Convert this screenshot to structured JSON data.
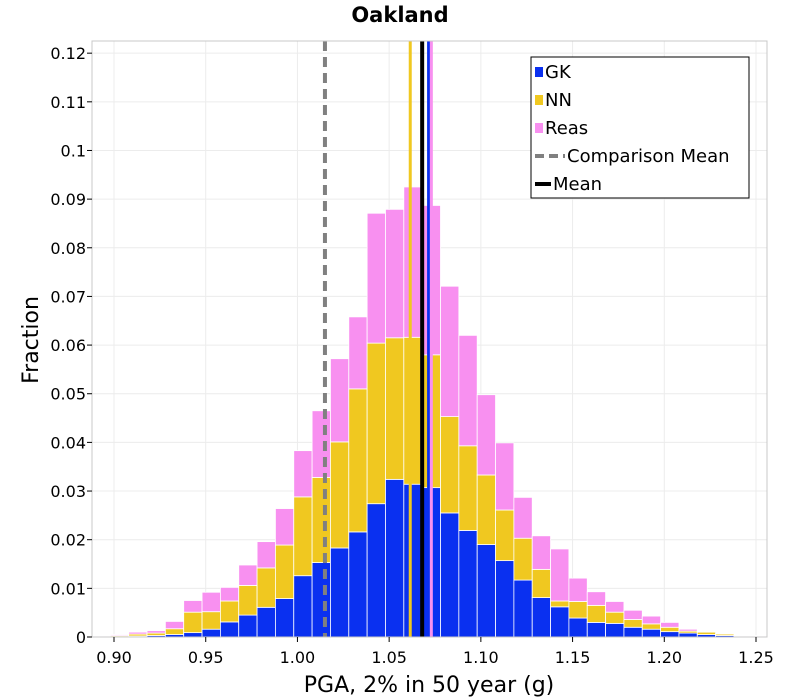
{
  "chart_data": {
    "type": "bar",
    "title": "Oakland",
    "xlabel": "PGA, 2% in 50 year (g)",
    "ylabel": "Fraction",
    "xlim": [
      0.888,
      1.256
    ],
    "ylim": [
      0,
      0.1225
    ],
    "x_ticks": [
      0.9,
      0.95,
      1.0,
      1.05,
      1.1,
      1.15,
      1.2,
      1.25
    ],
    "x_tick_labels": [
      "0.90",
      "0.95",
      "1.00",
      "1.05",
      "1.10",
      "1.15",
      "1.20",
      "1.25"
    ],
    "y_ticks": [
      0,
      0.01,
      0.02,
      0.03,
      0.04,
      0.05,
      0.06,
      0.07,
      0.08,
      0.09,
      0.1,
      0.11,
      0.12
    ],
    "y_tick_labels": [
      "0",
      "0.01",
      "0.02",
      "0.03",
      "0.04",
      "0.05",
      "0.06",
      "0.07",
      "0.08",
      "0.09",
      "0.1",
      "0.11",
      "0.12"
    ],
    "grid": true,
    "stacked": true,
    "bin_width": 0.01,
    "bin_centers": [
      0.893,
      0.903,
      0.913,
      0.923,
      0.933,
      0.943,
      0.953,
      0.963,
      0.973,
      0.983,
      0.993,
      1.003,
      1.013,
      1.023,
      1.033,
      1.043,
      1.053,
      1.063,
      1.073,
      1.083,
      1.093,
      1.103,
      1.113,
      1.123,
      1.133,
      1.143,
      1.153,
      1.163,
      1.173,
      1.183,
      1.193,
      1.203,
      1.213,
      1.223,
      1.233,
      1.243,
      1.253
    ],
    "series": [
      {
        "name": "GK",
        "color": "#0a30f0",
        "values": [
          0.0001,
          0.0001,
          0.0002,
          0.0003,
          0.0005,
          0.0009,
          0.0016,
          0.0031,
          0.0045,
          0.0061,
          0.0079,
          0.0126,
          0.0153,
          0.0183,
          0.0216,
          0.0274,
          0.0324,
          0.0314,
          0.0307,
          0.0255,
          0.0219,
          0.019,
          0.0157,
          0.0117,
          0.0081,
          0.0062,
          0.0039,
          0.003,
          0.0028,
          0.002,
          0.0016,
          0.0011,
          0.0008,
          0.0005,
          0.0003,
          0.0001,
          0.0001
        ]
      },
      {
        "name": "NN",
        "color": "#f0c820",
        "values": [
          0.0001,
          0.0002,
          0.0004,
          0.0005,
          0.0012,
          0.0042,
          0.0036,
          0.0043,
          0.0061,
          0.0081,
          0.011,
          0.0162,
          0.0175,
          0.0218,
          0.0294,
          0.033,
          0.0291,
          0.0302,
          0.0273,
          0.0198,
          0.0174,
          0.0143,
          0.0104,
          0.0086,
          0.0058,
          0.0012,
          0.0034,
          0.0035,
          0.0023,
          0.0016,
          0.0011,
          0.0009,
          0.0004,
          0.0005,
          0.0003,
          0.0001,
          0.0001
        ]
      },
      {
        "name": "Reas",
        "color": "#f890f0",
        "values": [
          0.0001,
          0.0002,
          0.0004,
          0.0005,
          0.0015,
          0.0024,
          0.004,
          0.0028,
          0.0042,
          0.0054,
          0.0075,
          0.0095,
          0.0137,
          0.0171,
          0.0148,
          0.0267,
          0.0264,
          0.0309,
          0.0307,
          0.0268,
          0.0227,
          0.0165,
          0.0138,
          0.0084,
          0.0069,
          0.0107,
          0.0048,
          0.0028,
          0.0022,
          0.0019,
          0.0016,
          0.001,
          0.0004,
          0.0001,
          0.0001,
          0.0001,
          0.0001
        ]
      }
    ],
    "reference_lines": [
      {
        "name": "Comparison Mean",
        "x": 1.015,
        "color": "#808080",
        "style": "dashed"
      },
      {
        "name": "Mean",
        "x": 1.068,
        "color": "#000000",
        "style": "solid"
      },
      {
        "name": "GK mean",
        "x": 1.0715,
        "color": "#0a30f0",
        "style": "solid"
      },
      {
        "name": "NN mean",
        "x": 1.0615,
        "color": "#f0c820",
        "style": "solid"
      },
      {
        "name": "Reas mean",
        "x": 1.073,
        "color": "#f890f0",
        "style": "solid"
      }
    ],
    "legend": {
      "position": "top-right",
      "entries": [
        {
          "label": "GK",
          "color": "#0a30f0",
          "kind": "patch"
        },
        {
          "label": "NN",
          "color": "#f0c820",
          "kind": "patch"
        },
        {
          "label": "Reas",
          "color": "#f890f0",
          "kind": "patch"
        },
        {
          "label": "Comparison Mean",
          "color": "#808080",
          "kind": "dashed-line"
        },
        {
          "label": "Mean",
          "color": "#000000",
          "kind": "line"
        }
      ]
    }
  }
}
